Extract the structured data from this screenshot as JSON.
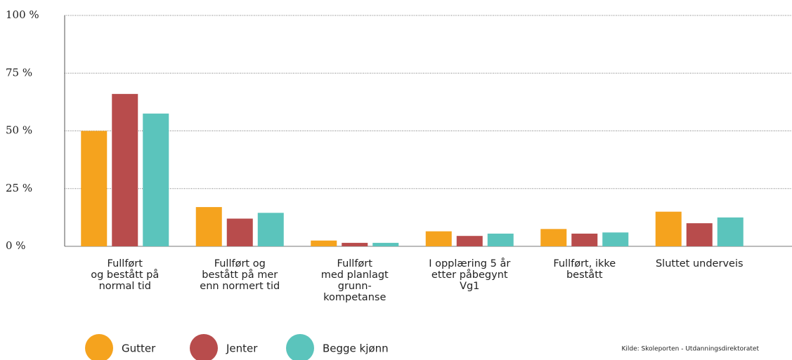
{
  "chart_data": {
    "type": "bar",
    "categories": [
      "Fullført\nog bestått på\nnormal tid",
      "Fullført og\nbestått på mer\nenn normert tid",
      "Fullført\nmed planlagt\ngrunn-\nkompetanse",
      "I opplæring 5 år\netter påbegynt\nVg1",
      "Fullført, ikke\nbestått",
      "Sluttet underveis"
    ],
    "series": [
      {
        "name": "Gutter",
        "color": "#f5a31e",
        "values": [
          50,
          17,
          2.5,
          6.5,
          7.5,
          15
        ]
      },
      {
        "name": "Jenter",
        "color": "#b84c4c",
        "values": [
          66,
          12,
          1.5,
          4.5,
          5.5,
          10
        ]
      },
      {
        "name": "Begge kjønn",
        "color": "#5bc4bc",
        "values": [
          57.5,
          14.5,
          1.5,
          5.5,
          6,
          12.5
        ]
      }
    ],
    "ylim": [
      0,
      100
    ],
    "yticks": [
      {
        "value": 0,
        "label": "0 %"
      },
      {
        "value": 25,
        "label": "25 %"
      },
      {
        "value": 50,
        "label": "50 %"
      },
      {
        "value": 75,
        "label": "75 %"
      },
      {
        "value": 100,
        "label": "100 %"
      }
    ],
    "grid": true,
    "legend": "bottom-left",
    "source": "Kilde: Skoleporten - Utdanningsdirektoratet"
  }
}
